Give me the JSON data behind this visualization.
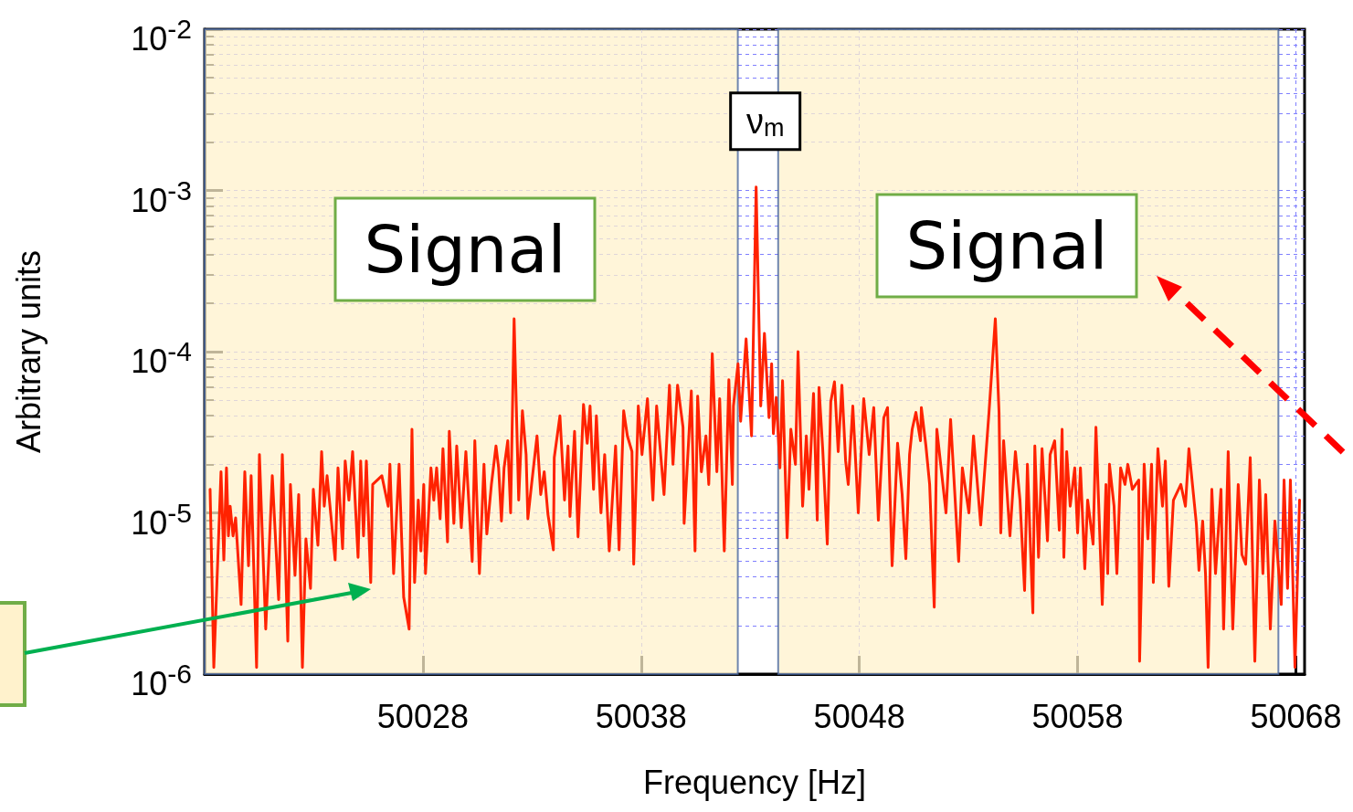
{
  "chart_data": {
    "type": "line",
    "xlabel": "Frequency [Hz]",
    "ylabel": "Arbitrary units",
    "log": "y",
    "grid": true,
    "marker": "none",
    "line_style": "solid",
    "xlim": [
      50018,
      50068.4
    ],
    "xticks": [
      50028,
      50038,
      50048,
      50058,
      50068
    ],
    "ylim": [
      1e-06,
      0.01
    ],
    "yticks": [
      {
        "value": 1e-06,
        "label": "10$^{-6}$"
      },
      {
        "value": 1e-05,
        "label": "10$^{-5}$"
      },
      {
        "value": 0.0001,
        "label": "10$^{-4}$"
      },
      {
        "value": 0.001,
        "label": "10$^{-3}$"
      },
      {
        "value": 0.01,
        "label": "10$^{-2}$"
      }
    ],
    "annotations": [
      "Signal",
      "Signal",
      {
        "text": "ν$_{m}$",
        "x": 50043.27,
        "y": 0.00105
      }
    ],
    "bands": [
      {
        "axis": "x",
        "from": 50018,
        "to": 50042.43,
        "color": "#fff2cc"
      },
      {
        "axis": "x",
        "from": 50044.28,
        "to": 50067.2,
        "color": "#fff2cc"
      }
    ],
    "series": [
      {
        "color": "#ff2200",
        "x": [
          50018.25,
          50018.42,
          50018.75,
          50018.88,
          50019.0,
          50019.09,
          50019.17,
          50019.3,
          50019.42,
          50019.67,
          50019.84,
          50020.01,
          50020.13,
          50020.38,
          50020.51,
          50020.8,
          50021.1,
          50021.39,
          50021.56,
          50021.81,
          50021.93,
          50022.14,
          50022.31,
          50022.48,
          50022.64,
          50022.85,
          50022.98,
          50023.19,
          50023.36,
          50023.48,
          50023.61,
          50023.98,
          50024.11,
          50024.32,
          50024.44,
          50024.61,
          50024.78,
          50025.03,
          50025.15,
          50025.28,
          50025.41,
          50025.61,
          50025.7,
          50026.12,
          50026.41,
          50026.49,
          50026.66,
          50026.91,
          50027.12,
          50027.37,
          50027.5,
          50027.62,
          50027.79,
          50027.91,
          50028.04,
          50028.12,
          50028.37,
          50028.5,
          50028.63,
          50028.79,
          50028.92,
          50029.13,
          50029.21,
          50029.42,
          50029.55,
          50029.76,
          50029.97,
          50030.26,
          50030.38,
          50030.59,
          50030.8,
          50030.93,
          50031.14,
          50031.35,
          50031.47,
          50031.6,
          50031.72,
          50031.89,
          50032.02,
          50032.18,
          50032.39,
          50032.56,
          50032.73,
          50032.81,
          50032.98,
          50033.23,
          50033.4,
          50033.56,
          50033.73,
          50033.98,
          50034.02,
          50034.28,
          50034.49,
          50034.65,
          50034.74,
          50034.95,
          50035.11,
          50035.36,
          50035.53,
          50035.66,
          50035.82,
          50035.95,
          50036.16,
          50036.33,
          50036.54,
          50036.83,
          50036.99,
          50037.2,
          50037.37,
          50037.58,
          50037.66,
          50037.87,
          50038.04,
          50038.29,
          50038.54,
          50038.71,
          50039.05,
          50039.3,
          50039.46,
          50039.67,
          50039.92,
          50039.97,
          50040.3,
          50040.47,
          50040.59,
          50040.76,
          50040.97,
          50041.1,
          50041.26,
          50041.47,
          50041.6,
          50041.81,
          50042.02,
          50042.18,
          50042.23,
          50042.44,
          50042.56,
          50042.81,
          50043.06,
          50043.27,
          50043.48,
          50043.65,
          50043.86,
          50043.98,
          50044.06,
          50044.19,
          50044.36,
          50044.48,
          50044.69,
          50044.86,
          50045.07,
          50045.19,
          50045.4,
          50045.57,
          50045.69,
          50045.9,
          50046.07,
          50046.15,
          50046.32,
          50046.53,
          50046.69,
          50046.86,
          50047.03,
          50047.2,
          50047.37,
          50047.49,
          50047.7,
          50047.95,
          50048.2,
          50048.45,
          50048.66,
          50048.87,
          50049.12,
          50049.29,
          50049.5,
          50049.75,
          50049.96,
          50050.13,
          50050.3,
          50050.42,
          50050.59,
          50050.8,
          50050.84,
          50051.05,
          50051.22,
          50051.43,
          50051.55,
          50051.97,
          50052.18,
          50052.55,
          50052.72,
          50053.02,
          50053.23,
          50053.56,
          50053.94,
          50054.23,
          50054.4,
          50054.48,
          50054.61,
          50054.9,
          50055.15,
          50055.36,
          50055.57,
          50055.7,
          50055.95,
          50056.04,
          50056.21,
          50056.37,
          50056.62,
          50056.74,
          50056.95,
          50057.16,
          50057.29,
          50057.37,
          50057.5,
          50057.66,
          50057.87,
          50058.0,
          50058.13,
          50058.33,
          50058.46,
          50058.71,
          50058.84,
          50059.13,
          50059.3,
          50059.38,
          50059.46,
          50059.67,
          50059.8,
          50059.97,
          50060.17,
          50060.3,
          50060.51,
          50060.8,
          50060.84,
          50061.05,
          50061.22,
          50061.39,
          50061.47,
          50061.68,
          50061.89,
          50062.02,
          50062.18,
          50062.39,
          50062.73,
          50062.94,
          50063.1,
          50063.44,
          50063.56,
          50063.73,
          50063.86,
          50063.98,
          50064.15,
          50064.32,
          50064.57,
          50064.69,
          50064.9,
          50065.11,
          50065.36,
          50065.53,
          50065.7,
          50065.91,
          50066.12,
          50066.33,
          50066.49,
          50066.62,
          50066.83,
          50067.04,
          50067.33,
          50067.46,
          50067.62,
          50067.75,
          50067.96,
          50068.17
        ],
        "values": [
          1.4e-05,
          1.1e-06,
          1.8e-05,
          5.1e-06,
          1.9e-05,
          7.2e-06,
          1.1e-05,
          7.2e-06,
          9.3e-06,
          2.7e-06,
          1.8e-05,
          4.7e-06,
          1.7e-05,
          1.1e-06,
          2.3e-05,
          1.9e-06,
          1.7e-05,
          2.9e-06,
          2.3e-05,
          1.6e-06,
          1.5e-05,
          4.1e-06,
          1.3e-05,
          1.1e-06,
          6.9e-06,
          3.4e-06,
          1.4e-05,
          6.3e-06,
          2.4e-05,
          1.1e-05,
          1.7e-05,
          5.1e-06,
          1.9e-05,
          6e-06,
          2.1e-05,
          1.2e-05,
          2.4e-05,
          5.3e-06,
          2.1e-05,
          7.2e-06,
          2.1e-05,
          3.7e-06,
          1.5e-05,
          1.7e-05,
          1.1e-05,
          2e-05,
          4.2e-06,
          2e-05,
          3e-06,
          1.9e-06,
          3.3e-05,
          3.7e-06,
          1.2e-05,
          5.8e-06,
          1.5e-05,
          4.2e-06,
          1.9e-05,
          1.2e-05,
          1.9e-05,
          9.2e-06,
          2.5e-05,
          6.6e-06,
          3.2e-05,
          8.6e-06,
          2.6e-05,
          8.1e-06,
          2.4e-05,
          5e-06,
          2.8e-05,
          4.2e-06,
          2e-05,
          7.4e-06,
          1.5e-05,
          2.6e-05,
          1.9e-05,
          8.9e-06,
          1.9e-05,
          2.8e-05,
          1e-05,
          0.00016,
          1.2e-05,
          4.3e-05,
          2.3e-05,
          9.2e-06,
          1.5e-05,
          3e-05,
          1.3e-05,
          1.8e-05,
          9.8e-06,
          5.9e-06,
          2.2e-05,
          4e-05,
          1.2e-05,
          2.6e-05,
          9.5e-06,
          3.2e-05,
          7.1e-06,
          4.7e-05,
          2.7e-05,
          4.6e-05,
          1.4e-05,
          4e-05,
          1e-05,
          2.3e-05,
          5.8e-06,
          2.6e-05,
          5.9e-06,
          4.3e-05,
          3e-05,
          2.4e-05,
          4.8e-06,
          4.6e-05,
          2.3e-05,
          5.1e-05,
          1.2e-05,
          4.6e-05,
          1.3e-05,
          6.2e-05,
          2e-05,
          6.2e-05,
          3.4e-05,
          8.6e-06,
          5.7e-05,
          5.8e-06,
          5.3e-05,
          1.8e-05,
          3e-05,
          1.5e-05,
          9.7e-05,
          1.8e-05,
          5.1e-05,
          5.8e-06,
          6.7e-05,
          1.5e-05,
          4.6e-05,
          8.4e-05,
          3.7e-05,
          0.00012,
          3e-05,
          0.00105,
          4.6e-05,
          0.00013,
          3.9e-05,
          8.4e-05,
          3.1e-05,
          5.2e-05,
          1.9e-05,
          6.6e-05,
          7e-06,
          3.3e-05,
          2e-05,
          0.0001,
          1.1e-05,
          3e-05,
          1.4e-05,
          5.5e-05,
          9e-06,
          6e-05,
          2.5e-05,
          6.4e-06,
          4.9e-05,
          6.5e-05,
          2.4e-05,
          6.2e-05,
          2.1e-05,
          1.5e-05,
          4.6e-05,
          1e-05,
          5.1e-05,
          2.3e-05,
          4.5e-05,
          9e-06,
          3.9e-05,
          4.5e-05,
          4.7e-06,
          2.7e-05,
          1.3e-05,
          5.2e-06,
          2.3e-05,
          3.3e-05,
          4.2e-05,
          2.8e-05,
          4.5e-05,
          2.6e-05,
          1.5e-05,
          2.6e-06,
          3.3e-05,
          1e-05,
          3.8e-05,
          5e-06,
          1.9e-05,
          1e-05,
          3e-05,
          8.4e-06,
          4.2e-05,
          0.00016,
          4.2e-05,
          7.5e-06,
          2.8e-05,
          7.2e-06,
          2.4e-05,
          1.2e-05,
          3.3e-06,
          2e-05,
          2.4e-06,
          2.6e-05,
          5.3e-06,
          2.5e-05,
          6.7e-06,
          2.3e-05,
          2.8e-05,
          7.8e-06,
          3.3e-05,
          5.3e-06,
          2.4e-05,
          1.1e-05,
          1.9e-05,
          7.5e-06,
          1.9e-05,
          4.5e-06,
          1.2e-05,
          6.4e-06,
          3.4e-05,
          2.7e-06,
          1.5e-05,
          4.2e-06,
          2e-05,
          1.1e-05,
          4.2e-06,
          1.9e-05,
          1.5e-05,
          2e-05,
          1.4e-05,
          1.6e-05,
          1.2e-06,
          2e-05,
          6.9e-06,
          2e-05,
          3.7e-06,
          2.5e-05,
          1.1e-05,
          2.1e-05,
          3.5e-06,
          1.2e-05,
          1.5e-05,
          1.1e-05,
          2.5e-05,
          8.6e-06,
          4.4e-06,
          8.9e-06,
          4.2e-06,
          1.1e-06,
          1.4e-05,
          4.2e-06,
          1.4e-05,
          1.9e-06,
          2.4e-05,
          1.9e-06,
          1.5e-05,
          5.5e-06,
          4.8e-06,
          2.2e-05,
          1.2e-06,
          1.6e-05,
          4.2e-06,
          1.3e-05,
          1.9e-06,
          8.9e-06,
          2.7e-06,
          1.6e-05,
          3.4e-06,
          1.6e-05,
          1.1e-06,
          1.2e-05
        ]
      }
    ]
  }
}
